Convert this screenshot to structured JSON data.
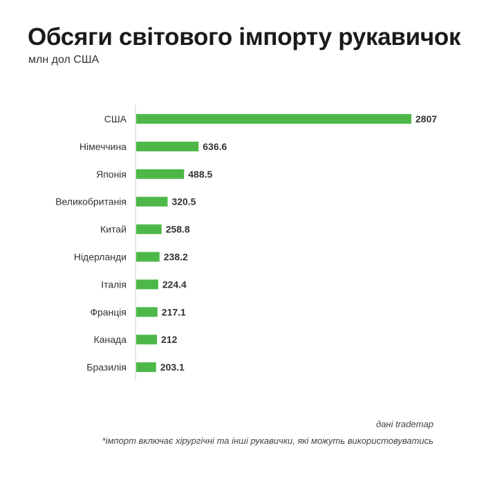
{
  "title": "Обсяги світового імпорту рукавичок",
  "subtitle": "млн дол США",
  "source": "дані trademap",
  "note": "*імпорт включає хірургічні та інші рукавички, які можуть використовуватись",
  "colors": {
    "bar": "#4db848",
    "axis": "#cccccc"
  },
  "chart_data": {
    "type": "bar",
    "orientation": "horizontal",
    "title": "Обсяги світового імпорту рукавичок",
    "subtitle": "млн дол США",
    "categories": [
      "США",
      "Німеччина",
      "Японія",
      "Великобританія",
      "Китай",
      "Нідерланди",
      "Італія",
      "Франція",
      "Канада",
      "Бразилія"
    ],
    "values": [
      2807,
      636.6,
      488.5,
      320.5,
      258.8,
      238.2,
      224.4,
      217.1,
      212,
      203.1
    ],
    "value_labels": [
      "2807",
      "636.6",
      "488.5",
      "320.5",
      "258.8",
      "238.2",
      "224.4",
      "217.1",
      "212",
      "203.1"
    ],
    "xlim": [
      0,
      2807
    ],
    "grid": false,
    "legend": "none"
  }
}
